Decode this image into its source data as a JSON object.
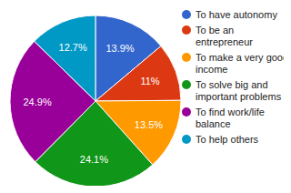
{
  "chart_data": {
    "type": "pie",
    "categories": [
      "To have autonomy",
      "To be an entrepreneur",
      "To make a very good income",
      "To solve big and important problems",
      "To find work/life balance",
      "To help others"
    ],
    "values": [
      13.9,
      11,
      13.5,
      24.1,
      24.9,
      12.7
    ],
    "value_labels": [
      "13.9%",
      "11%",
      "13.5%",
      "24.1%",
      "24.9%",
      "12.7%"
    ],
    "colors": [
      "#3366cc",
      "#dc3912",
      "#ff9900",
      "#109618",
      "#990099",
      "#0099c6"
    ],
    "data_labels": true,
    "legend": "right"
  }
}
